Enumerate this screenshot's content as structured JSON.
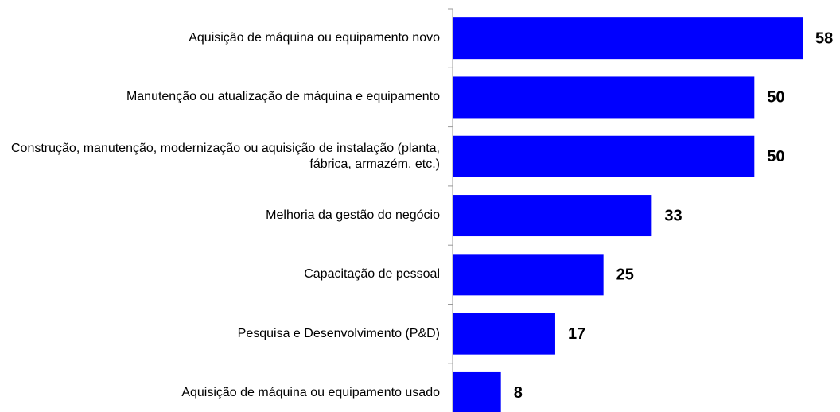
{
  "chart_data": {
    "type": "bar",
    "orientation": "horizontal",
    "categories": [
      "Aquisição de máquina ou equipamento novo",
      "Manutenção ou atualização de máquina e equipamento",
      "Construção, manutenção, modernização ou aquisição de instalação (planta, fábrica, armazém, etc.)",
      "Melhoria da gestão do negócio",
      "Capacitação de pessoal",
      "Pesquisa e Desenvolvimento (P&D)",
      "Aquisição de máquina ou equipamento usado"
    ],
    "values": [
      58,
      50,
      50,
      33,
      25,
      17,
      8
    ],
    "color": "#0000ff",
    "xlim": [
      0,
      58
    ]
  }
}
